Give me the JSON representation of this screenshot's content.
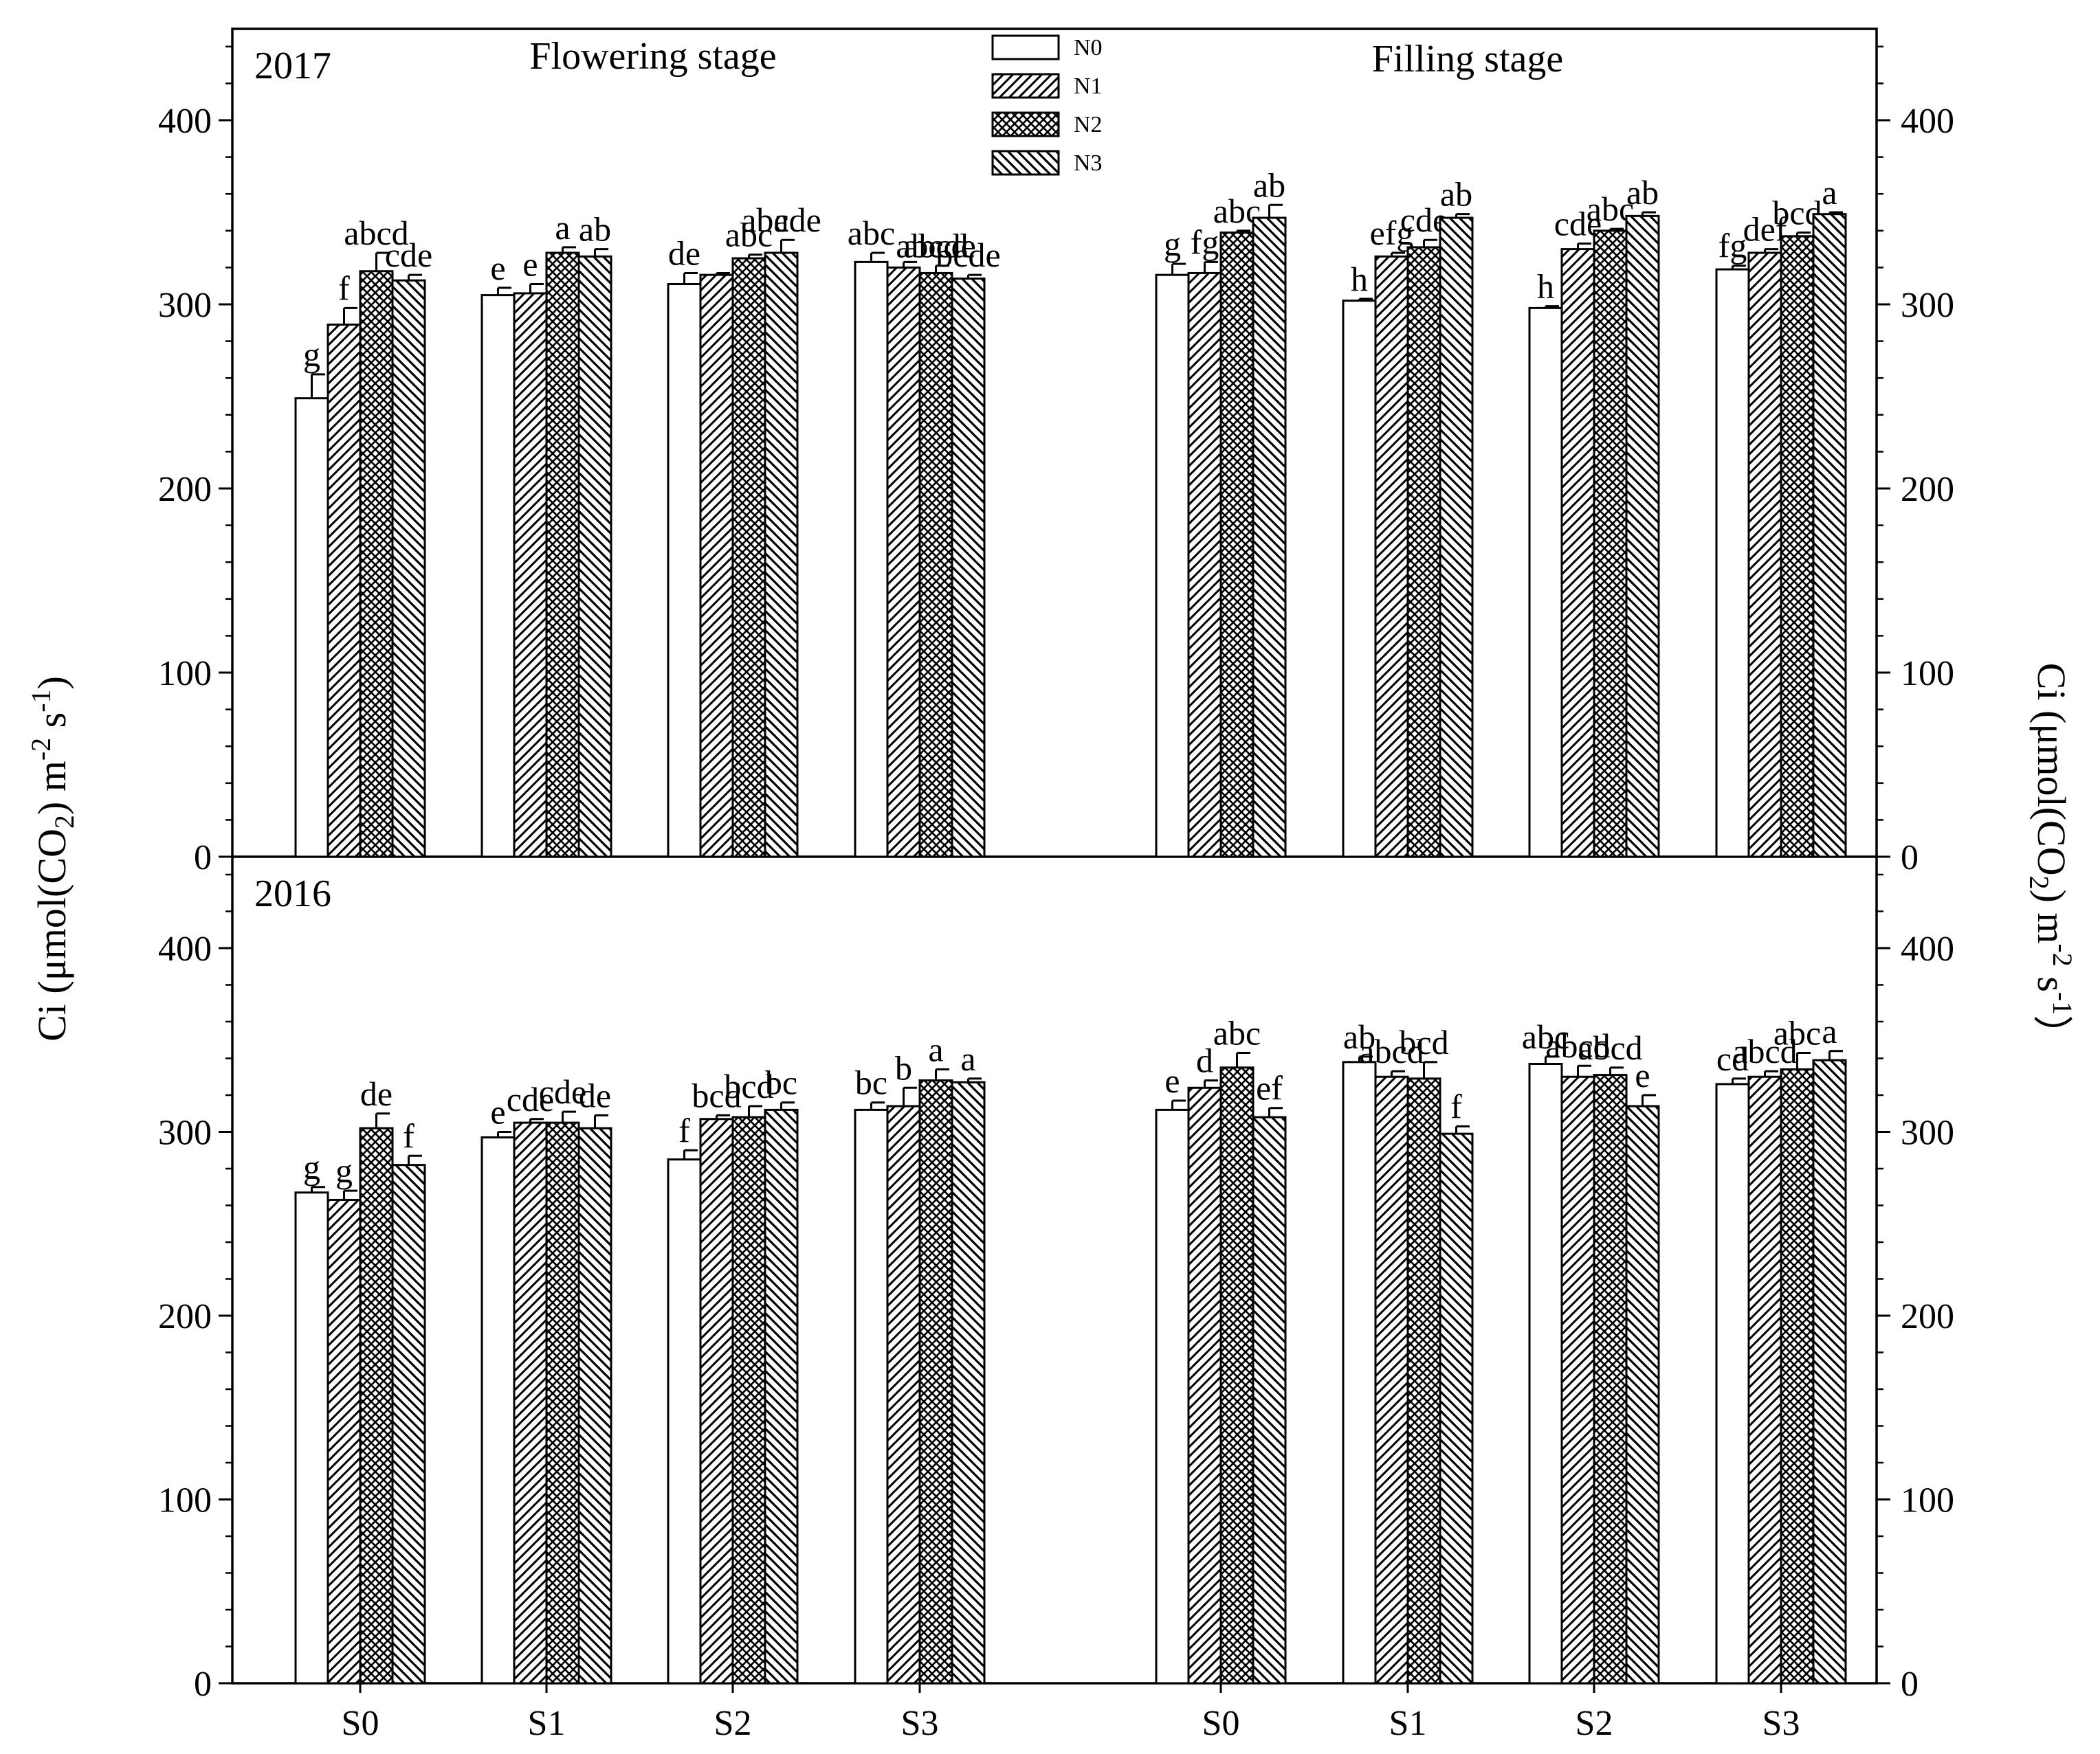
{
  "chart_data": {
    "type": "bar",
    "ylim": [
      0,
      450
    ],
    "yticks": [
      0,
      100,
      200,
      300,
      400
    ],
    "ylabel": "Ci (μmol(CO2) m-2 s-1)",
    "ylabel_left": {
      "main": "Ci  (μmol(CO",
      "sub": "2",
      "mid": ") m",
      "sup1": "-2",
      "mid2": " s",
      "sup2": "-1",
      "end": ")"
    },
    "ylabel_right": {
      "main": "Ci  (μmol(CO",
      "sub": "2",
      "mid": ") m",
      "sup1": "-2",
      "mid2": " s",
      "sup2": "-1",
      "end": "）"
    },
    "stage_titles": [
      "Flowering stage",
      "Filling stage"
    ],
    "categories": [
      "S0",
      "S1",
      "S2",
      "S3",
      "S0",
      "S1",
      "S2",
      "S3"
    ],
    "legend": [
      "N0",
      "N1",
      "N2",
      "N3"
    ],
    "legend_patterns": [
      "white",
      "diag-right",
      "crosshatch",
      "diag-left"
    ],
    "panels": [
      {
        "year": "2017",
        "series": [
          {
            "name": "N0",
            "values": [
              249,
              305,
              311,
              323,
              316,
              302,
              298,
              319
            ],
            "errors": [
              13,
              4,
              6,
              5,
              6,
              1,
              1,
              2
            ],
            "letters": [
              "g",
              "e",
              "de",
              "abc",
              "g",
              "h",
              "h",
              "fg"
            ]
          },
          {
            "name": "N1",
            "values": [
              289,
              306,
              316,
              320,
              317,
              326,
              330,
              328
            ],
            "errors": [
              9,
              5,
              1,
              3,
              6,
              2,
              3,
              2
            ],
            "letters": [
              "f",
              "e",
              "",
              "",
              "fg",
              "efg",
              "cde",
              "def"
            ]
          },
          {
            "name": "N2",
            "values": [
              318,
              328,
              325,
              317,
              339,
              331,
              340,
              337
            ],
            "errors": [
              10,
              3,
              2,
              4,
              1,
              4,
              1,
              2
            ],
            "letters": [
              "abcd",
              "a",
              "abc",
              "abcd",
              "abc",
              "cde",
              "abc",
              "bcd"
            ]
          },
          {
            "name": "N3",
            "values": [
              313,
              326,
              328,
              314,
              347,
              347,
              348,
              349
            ],
            "errors": [
              3,
              4,
              7,
              2,
              7,
              2,
              2,
              1
            ],
            "letters": [
              "cde",
              "ab",
              "abcde",
              "bcde",
              "ab",
              "ab",
              "ab",
              "a"
            ]
          }
        ],
        "extra_labels": [
          {
            "group": 2,
            "bar": 3,
            "text": "a"
          },
          {
            "group": 3,
            "bar": 2,
            "text": "abcde"
          }
        ]
      },
      {
        "year": "2016",
        "series": [
          {
            "name": "N0",
            "values": [
              267,
              297,
              285,
              312,
              312,
              338,
              337,
              326
            ],
            "errors": [
              3,
              3,
              5,
              4,
              5,
              3,
              4,
              3
            ],
            "letters": [
              "g",
              "e",
              "f",
              "bc",
              "e",
              "ab",
              "abc",
              "cd"
            ]
          },
          {
            "name": "N1",
            "values": [
              263,
              305,
              307,
              314,
              324,
              330,
              330,
              330
            ],
            "errors": [
              5,
              2,
              2,
              10,
              4,
              3,
              6,
              3
            ],
            "letters": [
              "g",
              "cde",
              "bcd",
              "b",
              "d",
              "abcd",
              "abcd",
              "abcd"
            ]
          },
          {
            "name": "N2",
            "values": [
              302,
              305,
              308,
              328,
              335,
              329,
              331,
              334
            ],
            "errors": [
              8,
              6,
              6,
              6,
              8,
              9,
              4,
              9
            ],
            "letters": [
              "de",
              "cde",
              "bcd",
              "a",
              "abc",
              "bcd",
              "abcd",
              "abc"
            ]
          },
          {
            "name": "N3",
            "values": [
              282,
              302,
              312,
              327,
              308,
              299,
              314,
              339
            ],
            "errors": [
              5,
              7,
              4,
              2,
              5,
              4,
              6,
              5
            ],
            "letters": [
              "f",
              "de",
              "bc",
              "a",
              "ef",
              "f",
              "e",
              "a"
            ]
          }
        ],
        "extra_labels": []
      }
    ]
  }
}
